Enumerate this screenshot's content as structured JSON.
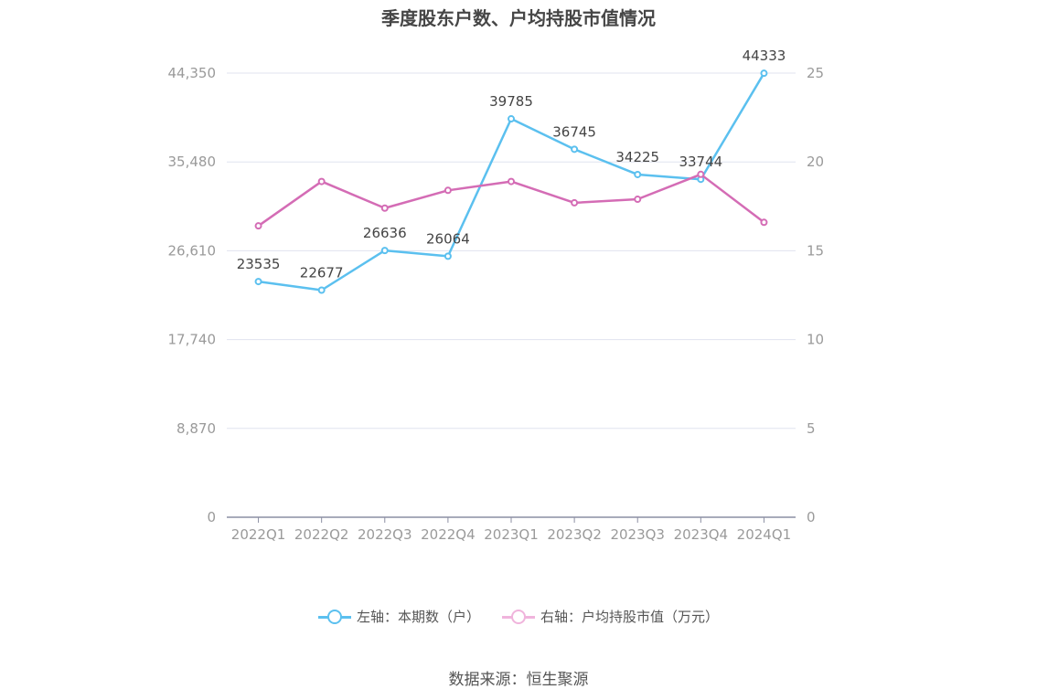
{
  "chart_data": {
    "type": "line",
    "title": "季度股东户数、户均持股市值情况",
    "categories": [
      "2022Q1",
      "2022Q2",
      "2022Q3",
      "2022Q4",
      "2023Q1",
      "2023Q2",
      "2023Q3",
      "2023Q4",
      "2024Q1"
    ],
    "left_axis": {
      "ylim": [
        0,
        44350
      ],
      "ticks": [
        "0",
        "8,870",
        "17,740",
        "26,610",
        "35,480",
        "44,350"
      ],
      "tick_values": [
        0,
        8870,
        17740,
        26610,
        35480,
        44350
      ]
    },
    "right_axis": {
      "ylim": [
        0,
        25
      ],
      "ticks": [
        "0",
        "5",
        "10",
        "15",
        "20",
        "25"
      ],
      "tick_values": [
        0,
        5,
        10,
        15,
        20,
        25
      ]
    },
    "series": [
      {
        "name": "左轴：本期数（户）",
        "axis": "left",
        "color": "#5bc0ef",
        "values": [
          23535,
          22677,
          26636,
          26064,
          39785,
          36745,
          34225,
          33744,
          44333
        ],
        "labels": [
          "23535",
          "22677",
          "26636",
          "26064",
          "39785",
          "36745",
          "34225",
          "33744",
          "44333"
        ]
      },
      {
        "name": "右轴：户均持股市值（万元）",
        "axis": "right",
        "color": "#d46cb5",
        "values": [
          16.4,
          18.9,
          17.4,
          18.4,
          18.9,
          17.7,
          17.9,
          19.3,
          16.6
        ]
      }
    ],
    "grid": true,
    "legend": "bottom-center"
  },
  "source": "数据来源：恒生聚源"
}
